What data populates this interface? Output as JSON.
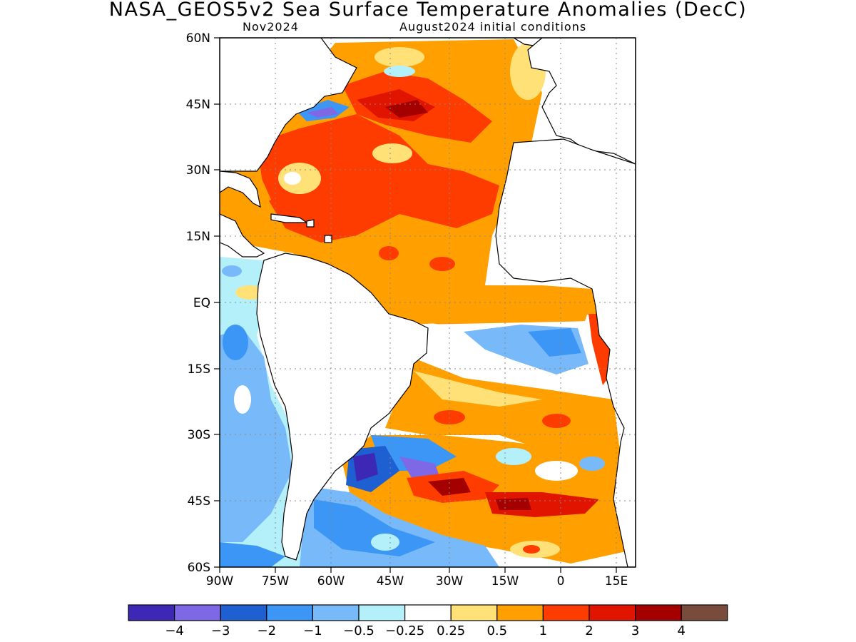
{
  "title": "NASA_GEOS5v2 Sea Surface Temperature Anomalies (DecC)",
  "subtitle_left": "Nov2024",
  "subtitle_right": "August2024 initial conditions",
  "map": {
    "lon_range": [
      -90,
      15
    ],
    "lat_range": [
      -60,
      60
    ],
    "lat_ticks": [
      "60N",
      "45N",
      "30N",
      "15N",
      "EQ",
      "15S",
      "30S",
      "45S",
      "60S"
    ],
    "lon_ticks": [
      "90W",
      "75W",
      "60W",
      "45W",
      "30W",
      "15W",
      "0",
      "15E"
    ],
    "land_color": "#ffffff",
    "grid": "dotted"
  },
  "colorbar": {
    "colors": [
      "#3c28b4",
      "#7e68e6",
      "#1e5fd2",
      "#3c96f5",
      "#78b9fa",
      "#b4f0fa",
      "#ffffff",
      "#ffe178",
      "#ffa000",
      "#ff3c00",
      "#e11400",
      "#a50000",
      "#784b3c"
    ],
    "labels": [
      "-4",
      "-3",
      "-2",
      "-1",
      "-0.5",
      "-0.25",
      "0.25",
      "0.5",
      "1",
      "2",
      "3",
      "4"
    ]
  }
}
